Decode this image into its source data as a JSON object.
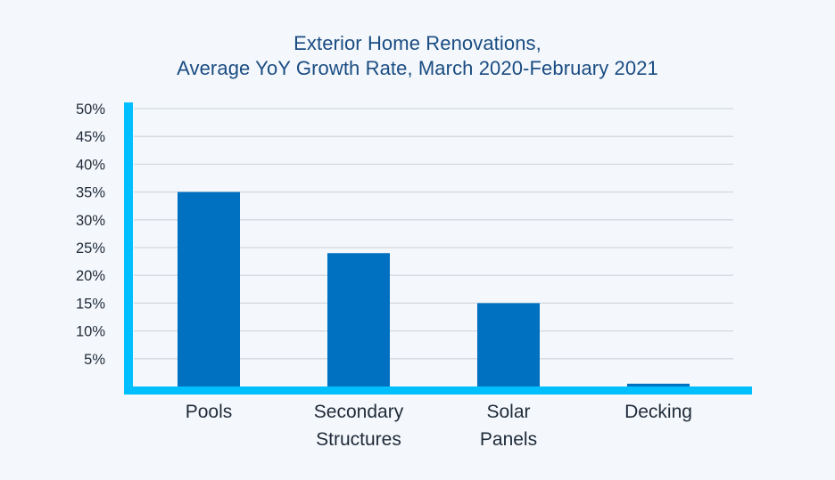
{
  "chart_data": {
    "type": "bar",
    "title_lines": [
      "Exterior Home Renovations,",
      "Average YoY Growth Rate, March 2020-February 2021"
    ],
    "categories": [
      [
        "Pools"
      ],
      [
        "Secondary",
        "Structures"
      ],
      [
        "Solar",
        "Panels"
      ],
      [
        "Decking"
      ]
    ],
    "values": [
      35,
      24,
      15,
      0.5
    ],
    "yticks": [
      "5%",
      "10%",
      "15%",
      "20%",
      "25%",
      "30%",
      "35%",
      "40%",
      "45%",
      "50%"
    ],
    "ytick_values": [
      5,
      10,
      15,
      20,
      25,
      30,
      35,
      40,
      45,
      50
    ],
    "ylim": [
      0,
      50
    ],
    "grid": true,
    "colors": {
      "bar": "#0070c0",
      "axis": "#00bfff",
      "grid": "#d4d9de",
      "title": "#1a4c82",
      "label": "#1f2a38"
    }
  }
}
